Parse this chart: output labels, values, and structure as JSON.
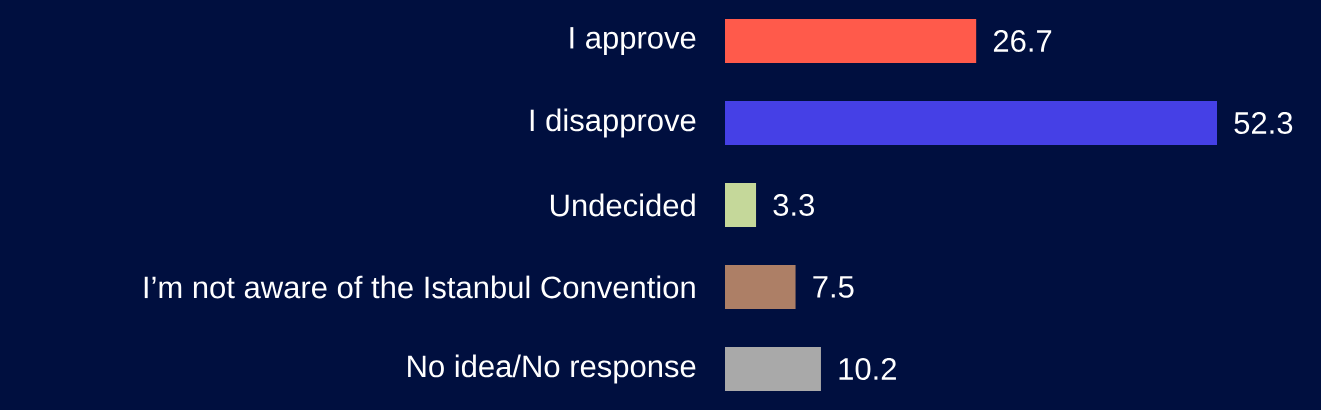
{
  "chart_data": {
    "type": "bar",
    "orientation": "horizontal",
    "data_labels": true,
    "categories": [
      "I approve",
      "I disapprove",
      "Undecided",
      "I’m not aware of the Istanbul Convention",
      "No idea/No response"
    ],
    "values": [
      26.7,
      52.3,
      3.3,
      7.5,
      10.2
    ],
    "colors": [
      "#ff5a4b",
      "#4540e6",
      "#c5d89a",
      "#ad7f66",
      "#a9a9a9"
    ]
  }
}
